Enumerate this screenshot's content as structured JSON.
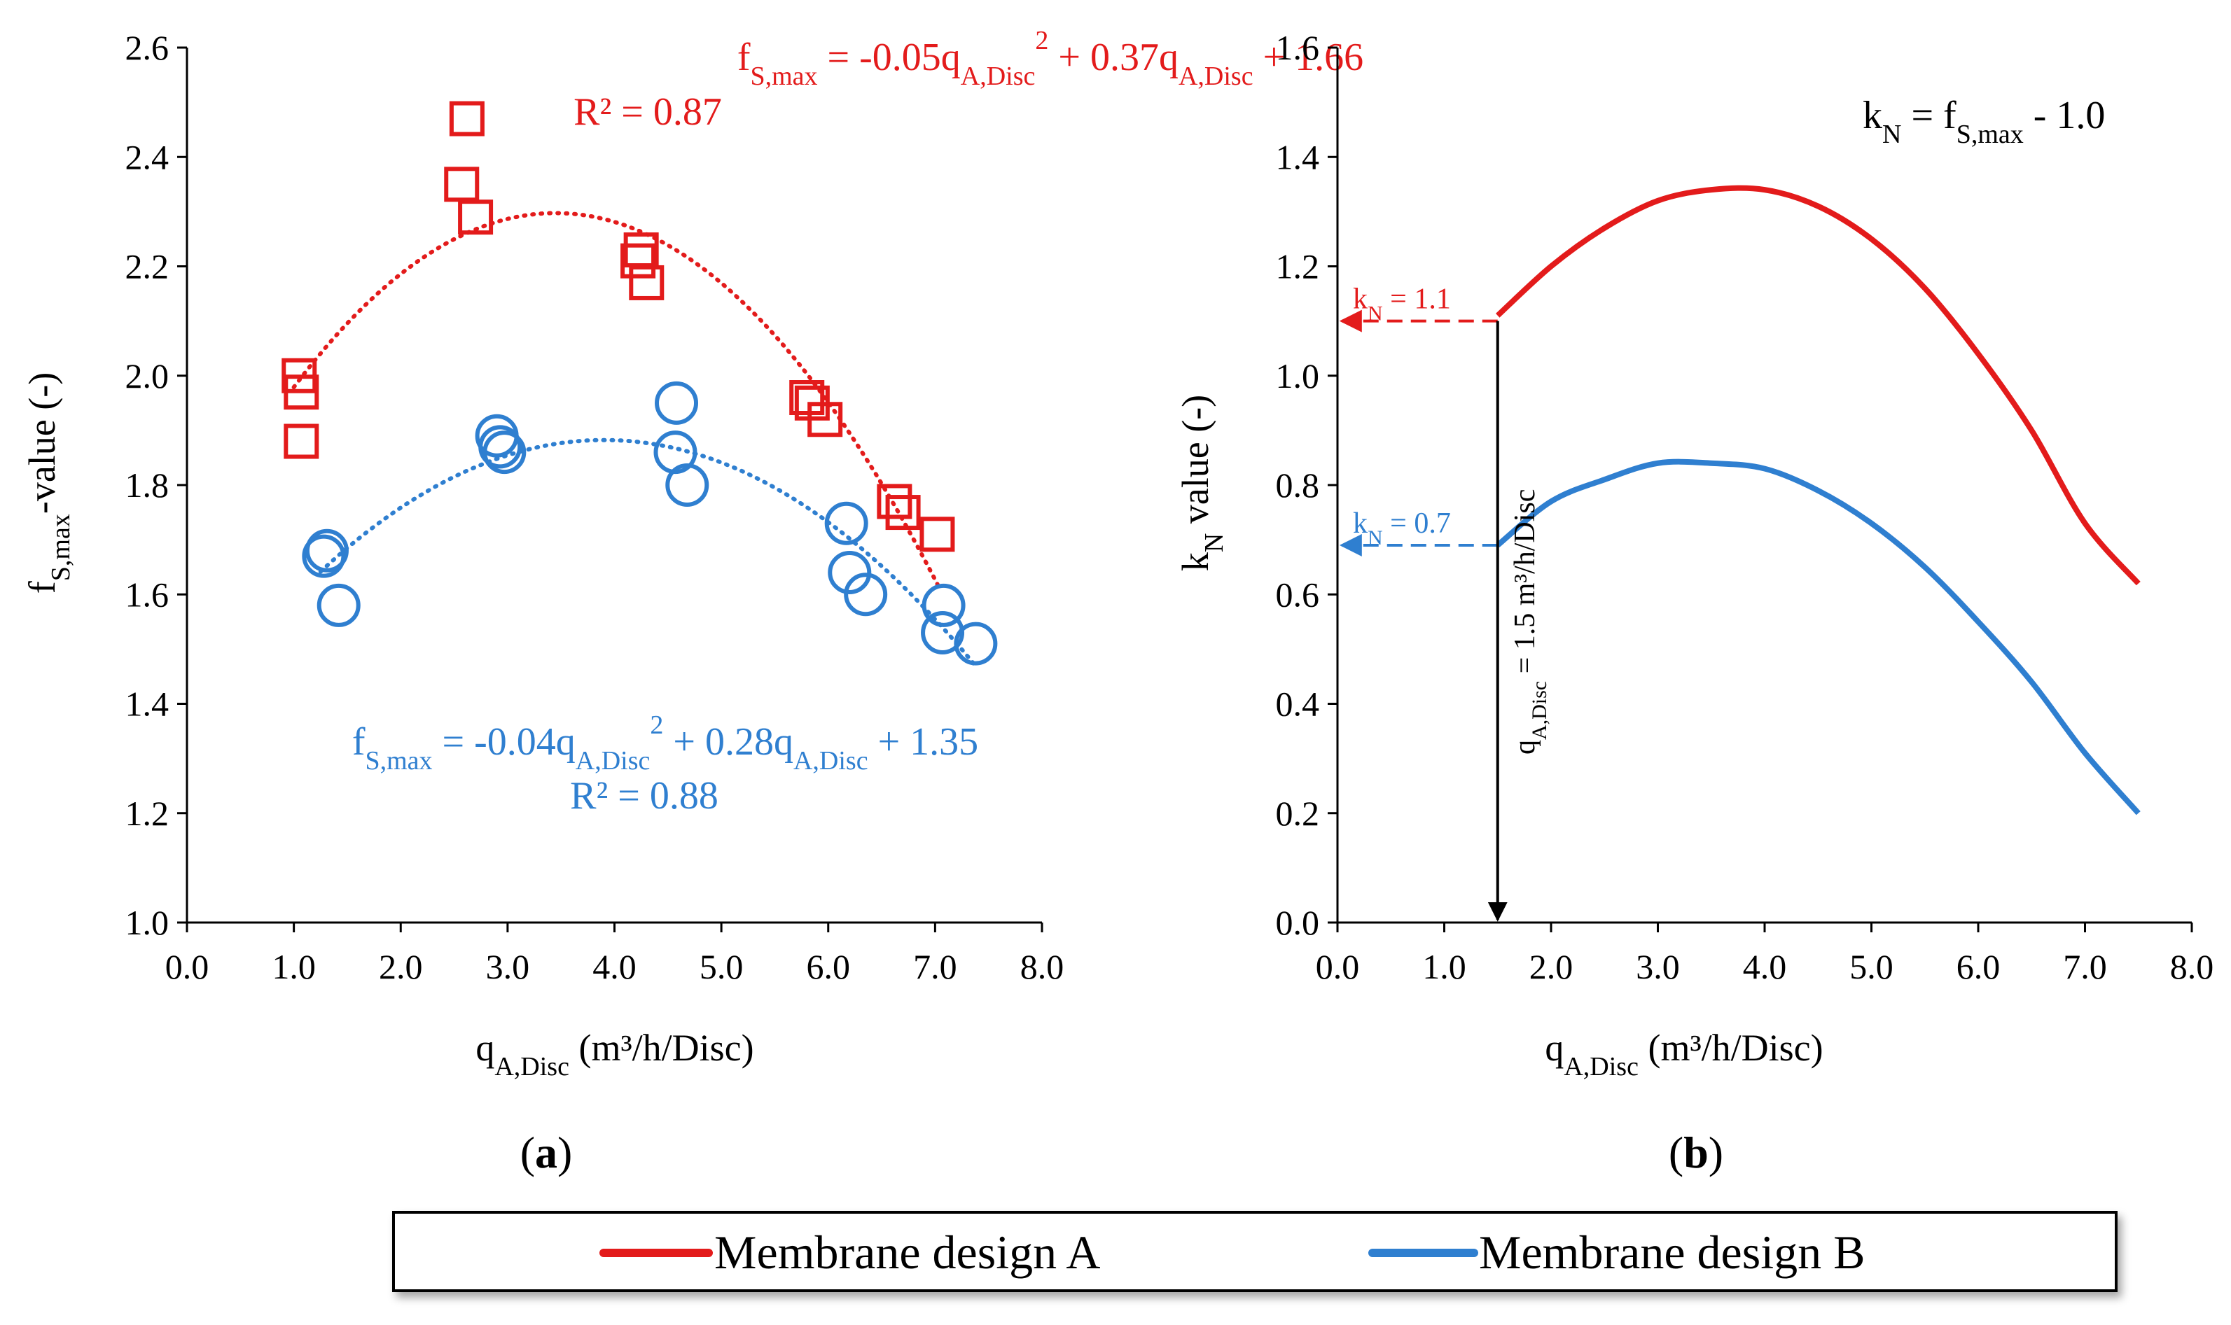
{
  "colors": {
    "series_a": "#e31b1b",
    "series_b": "#2f7fd0",
    "axis": "#000000"
  },
  "chart_data": [
    {
      "panel": "a",
      "panel_label": "a",
      "type": "scatter",
      "title": "",
      "xlabel": {
        "main": "q",
        "sub": "A,Disc",
        "rest": " (m³/h/Disc)"
      },
      "ylabel": {
        "main": "f",
        "sub": "S,max",
        "rest": "-value (-)"
      },
      "xlim": [
        0,
        8
      ],
      "ylim": [
        1.0,
        2.6
      ],
      "xticks": [
        0,
        1,
        2,
        3,
        4,
        5,
        6,
        7,
        8
      ],
      "yticks": [
        1.0,
        1.2,
        1.4,
        1.6,
        1.8,
        2.0,
        2.2,
        2.4,
        2.6
      ],
      "x_tick_labels": [
        "0.0",
        "1.0",
        "2.0",
        "3.0",
        "4.0",
        "5.0",
        "6.0",
        "7.0",
        "8.0"
      ],
      "y_tick_labels": [
        "1.0",
        "1.2",
        "1.4",
        "1.6",
        "1.8",
        "2.0",
        "2.2",
        "2.4",
        "2.6"
      ],
      "series": [
        {
          "name": "Membrane design A",
          "marker": "square",
          "points": [
            {
              "x": 1.05,
              "y": 2.0
            },
            {
              "x": 1.07,
              "y": 1.97
            },
            {
              "x": 1.07,
              "y": 1.88
            },
            {
              "x": 2.57,
              "y": 2.35
            },
            {
              "x": 2.62,
              "y": 2.47
            },
            {
              "x": 2.7,
              "y": 2.29
            },
            {
              "x": 4.22,
              "y": 2.21
            },
            {
              "x": 4.25,
              "y": 2.23
            },
            {
              "x": 4.3,
              "y": 2.17
            },
            {
              "x": 5.8,
              "y": 1.96
            },
            {
              "x": 5.85,
              "y": 1.95
            },
            {
              "x": 5.97,
              "y": 1.92
            },
            {
              "x": 6.62,
              "y": 1.77
            },
            {
              "x": 6.7,
              "y": 1.75
            },
            {
              "x": 7.02,
              "y": 1.71
            }
          ],
          "trendline": {
            "x_range": [
              1.0,
              7.05
            ],
            "equation": {
              "lhs_main": "f",
              "lhs_sub": "S,max",
              "t1": " = -0.05q",
              "t1_sub": "A,Disc",
              "t1_sup": "2",
              "t2": " + 0.37q",
              "t2_sub": "A,Disc",
              "t3": " + 1.66"
            },
            "r2": "R² = 0.87"
          }
        },
        {
          "name": "Membrane design B",
          "marker": "circle",
          "points": [
            {
              "x": 1.28,
              "y": 1.67
            },
            {
              "x": 1.31,
              "y": 1.68
            },
            {
              "x": 1.42,
              "y": 1.58
            },
            {
              "x": 2.9,
              "y": 1.89
            },
            {
              "x": 2.93,
              "y": 1.87
            },
            {
              "x": 2.97,
              "y": 1.86
            },
            {
              "x": 4.58,
              "y": 1.95
            },
            {
              "x": 4.57,
              "y": 1.86
            },
            {
              "x": 4.68,
              "y": 1.8
            },
            {
              "x": 6.17,
              "y": 1.73
            },
            {
              "x": 6.2,
              "y": 1.64
            },
            {
              "x": 6.35,
              "y": 1.6
            },
            {
              "x": 7.08,
              "y": 1.58
            },
            {
              "x": 7.07,
              "y": 1.53
            },
            {
              "x": 7.38,
              "y": 1.51
            }
          ],
          "trendline": {
            "x_range": [
              1.25,
              7.4
            ],
            "equation": {
              "lhs_main": "f",
              "lhs_sub": "S,max",
              "t1": " = -0.04q",
              "t1_sub": "A,Disc",
              "t1_sup": "2",
              "t2": " + 0.28q",
              "t2_sub": "A,Disc",
              "t3": " + 1.35"
            },
            "r2": "R² = 0.88"
          }
        }
      ]
    },
    {
      "panel": "b",
      "panel_label": "b",
      "type": "line",
      "title": "",
      "xlabel": {
        "main": "q",
        "sub": "A,Disc",
        "rest": " (m³/h/Disc)"
      },
      "ylabel": {
        "main": "k",
        "sub": "N",
        "rest": " value (-)"
      },
      "xlim": [
        0,
        8
      ],
      "ylim": [
        0.0,
        1.6
      ],
      "xticks": [
        0,
        1,
        2,
        3,
        4,
        5,
        6,
        7,
        8
      ],
      "yticks": [
        0.0,
        0.2,
        0.4,
        0.6,
        0.8,
        1.0,
        1.2,
        1.4,
        1.6
      ],
      "x_tick_labels": [
        "0.0",
        "1.0",
        "2.0",
        "3.0",
        "4.0",
        "5.0",
        "6.0",
        "7.0",
        "8.0"
      ],
      "y_tick_labels": [
        "0.0",
        "0.2",
        "0.4",
        "0.6",
        "0.8",
        "1.0",
        "1.2",
        "1.4",
        "1.6"
      ],
      "series": [
        {
          "name": "Membrane design A",
          "x": [
            1.5,
            2.0,
            2.5,
            3.0,
            3.5,
            4.0,
            4.5,
            5.0,
            5.5,
            6.0,
            6.5,
            7.0,
            7.5
          ],
          "y": [
            1.11,
            1.2,
            1.27,
            1.32,
            1.34,
            1.34,
            1.31,
            1.25,
            1.16,
            1.04,
            0.9,
            0.73,
            0.62
          ]
        },
        {
          "name": "Membrane design B",
          "x": [
            1.5,
            2.0,
            2.5,
            3.0,
            3.5,
            4.0,
            4.5,
            5.0,
            5.5,
            6.0,
            6.5,
            7.0,
            7.5
          ],
          "y": [
            0.69,
            0.77,
            0.81,
            0.84,
            0.84,
            0.83,
            0.79,
            0.73,
            0.65,
            0.55,
            0.44,
            0.31,
            0.2
          ]
        }
      ],
      "annotations": {
        "formula": {
          "k": "k",
          "k_sub": "N",
          "mid": " = f",
          "f_sub": "S,max",
          "end": "  - 1.0"
        },
        "kn_a": {
          "k": "k",
          "sub": "N",
          "rest": " = 1.1",
          "value": 1.1
        },
        "kn_b": {
          "k": "k",
          "sub": "N",
          "rest": " = 0.7",
          "value": 0.69
        },
        "vertical": {
          "x": 1.5,
          "q": "q",
          "sub": "A,Disc",
          "rest": " = 1.5 m³/h/Disc"
        }
      }
    }
  ],
  "legend": {
    "items": [
      {
        "label": "Membrane design A"
      },
      {
        "label": "Membrane design B"
      }
    ]
  }
}
